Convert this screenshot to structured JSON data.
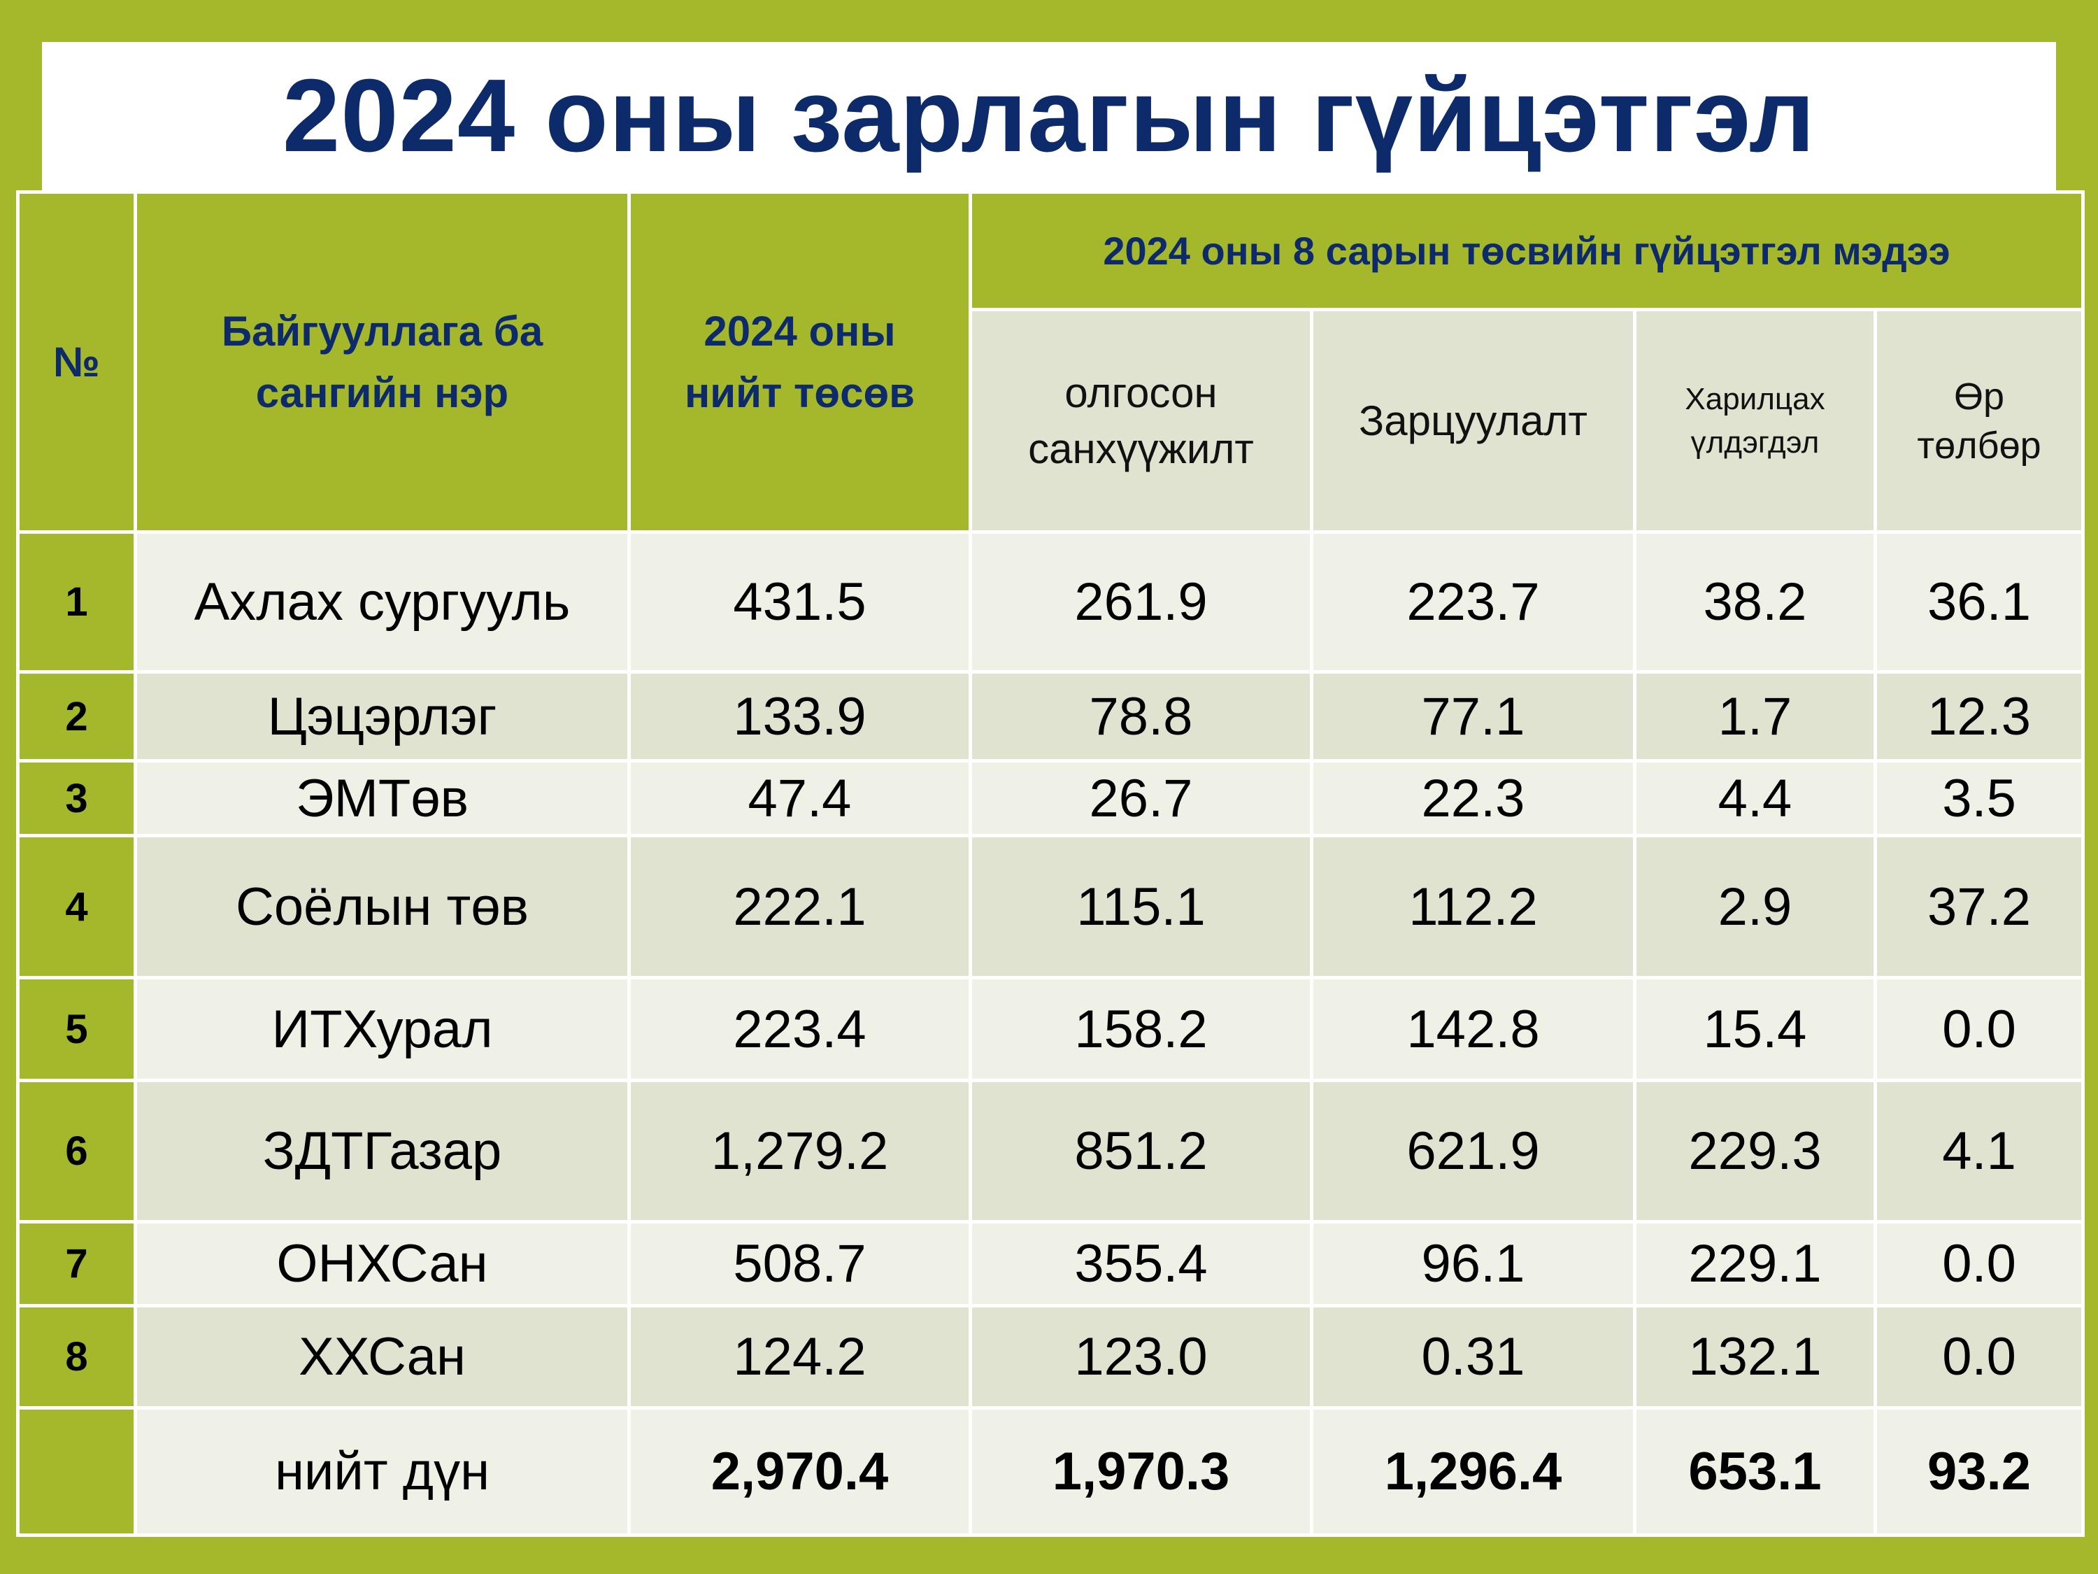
{
  "title": "2024 оны зарлагын гүйцэтгэл",
  "headers": {
    "no": "№",
    "name_line1": "Байгууллага ба",
    "name_line2": "сангийн  нэр",
    "budget_line1": "2024 оны",
    "budget_line2": "нийт төсөв",
    "group": "2024 оны  8 сарын төсвийн гүйцэтгэл мэдээ",
    "received_line1": "олгосон",
    "received_line2": "санхүүжилт",
    "spent": "Зарцуулалт",
    "balance_line1": "Харилцах",
    "balance_line2": "үлдэгдэл",
    "debt_line1": "Өр",
    "debt_line2": "төлбөр"
  },
  "rows": [
    {
      "no": "1",
      "name": "Ахлах  сургууль",
      "budget": "431.5",
      "received": "261.9",
      "spent": "223.7",
      "balance": "38.2",
      "debt": "36.1"
    },
    {
      "no": "2",
      "name": "Цэцэрлэг",
      "budget": "133.9",
      "received": "78.8",
      "spent": "77.1",
      "balance": "1.7",
      "debt": "12.3"
    },
    {
      "no": "3",
      "name": "ЭМТөв",
      "budget": "47.4",
      "received": "26.7",
      "spent": "22.3",
      "balance": "4.4",
      "debt": "3.5"
    },
    {
      "no": "4",
      "name": "Соёлын  төв",
      "budget": "222.1",
      "received": "115.1",
      "spent": "112.2",
      "balance": "2.9",
      "debt": "37.2"
    },
    {
      "no": "5",
      "name": "ИТХурал",
      "budget": "223.4",
      "received": "158.2",
      "spent": "142.8",
      "balance": "15.4",
      "debt": "0.0"
    },
    {
      "no": "6",
      "name": "ЗДТГазар",
      "budget": "1,279.2",
      "received": "851.2",
      "spent": "621.9",
      "balance": "229.3",
      "debt": "4.1"
    },
    {
      "no": "7",
      "name": "ОНХСан",
      "budget": "508.7",
      "received": "355.4",
      "spent": "96.1",
      "balance": "229.1",
      "debt": "0.0"
    },
    {
      "no": "8",
      "name": "ХХСан",
      "budget": "124.2",
      "received": "123.0",
      "spent": "0.31",
      "balance": "132.1",
      "debt": "0.0"
    }
  ],
  "total": {
    "no": "",
    "name": "нийт  дүн",
    "budget": "2,970.4",
    "received": "1,970.3",
    "spent": "1,296.4",
    "balance": "653.1",
    "debt": "93.2"
  }
}
